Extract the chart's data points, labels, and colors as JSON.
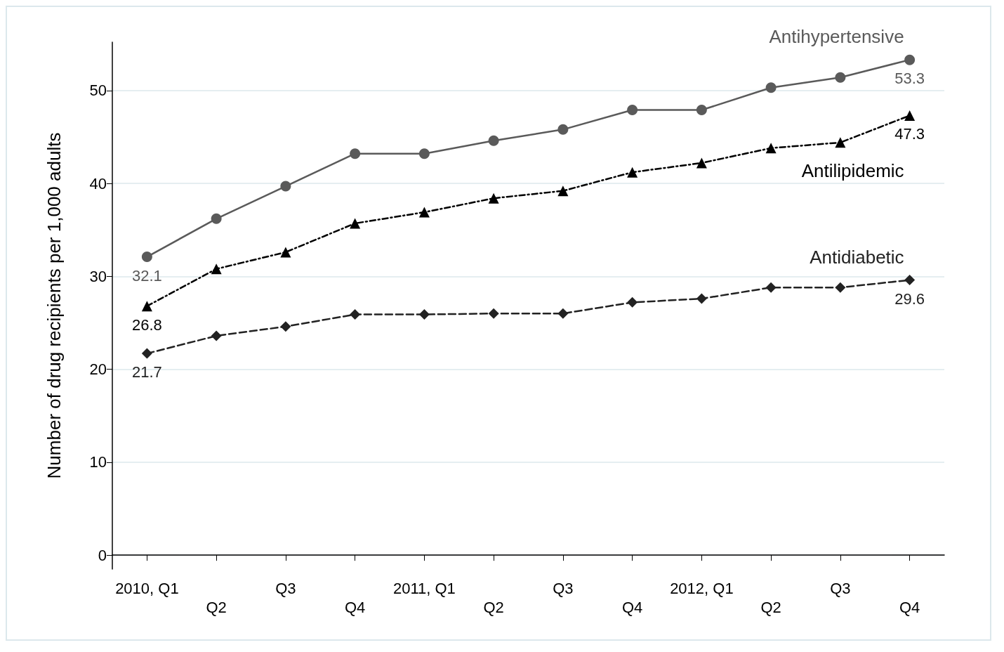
{
  "chart_data": {
    "type": "line",
    "ylabel": "Number of drug recipients per 1,000 adults",
    "categories": [
      "2010, Q1",
      "Q2",
      "Q3",
      "Q4",
      "2011, Q1",
      "Q2",
      "Q3",
      "Q4",
      "2012, Q1",
      "Q2",
      "Q3",
      "Q4"
    ],
    "series": [
      {
        "name": "Antihypertensive",
        "color": "#5a5a5a",
        "marker": "circle",
        "line_style": "solid",
        "values": [
          32.1,
          36.2,
          39.7,
          43.2,
          43.2,
          44.6,
          45.8,
          47.9,
          47.9,
          50.3,
          51.4,
          53.3
        ],
        "value_labels": [
          "32.1",
          null,
          null,
          null,
          null,
          null,
          null,
          null,
          null,
          null,
          null,
          "53.3"
        ]
      },
      {
        "name": "Antilipidemic",
        "color": "#000000",
        "marker": "triangle",
        "line_style": "dotted",
        "values": [
          26.8,
          30.8,
          32.6,
          35.7,
          36.9,
          38.4,
          39.2,
          41.2,
          42.2,
          43.8,
          44.4,
          47.3
        ],
        "value_labels": [
          "26.8",
          null,
          null,
          null,
          null,
          null,
          null,
          null,
          null,
          null,
          null,
          "47.3"
        ]
      },
      {
        "name": "Antidiabetic",
        "color": "#222222",
        "marker": "diamond",
        "line_style": "dashed",
        "values": [
          21.7,
          23.6,
          24.6,
          25.9,
          25.9,
          26.0,
          26.0,
          27.2,
          27.6,
          28.8,
          28.8,
          29.6
        ],
        "value_labels": [
          "21.7",
          null,
          null,
          null,
          null,
          null,
          null,
          null,
          null,
          null,
          null,
          "29.6"
        ]
      }
    ],
    "ylim": [
      -1.5,
      55.2
    ],
    "yticks": [
      0,
      10,
      20,
      30,
      40,
      50
    ],
    "grid": "y",
    "legend": false
  }
}
